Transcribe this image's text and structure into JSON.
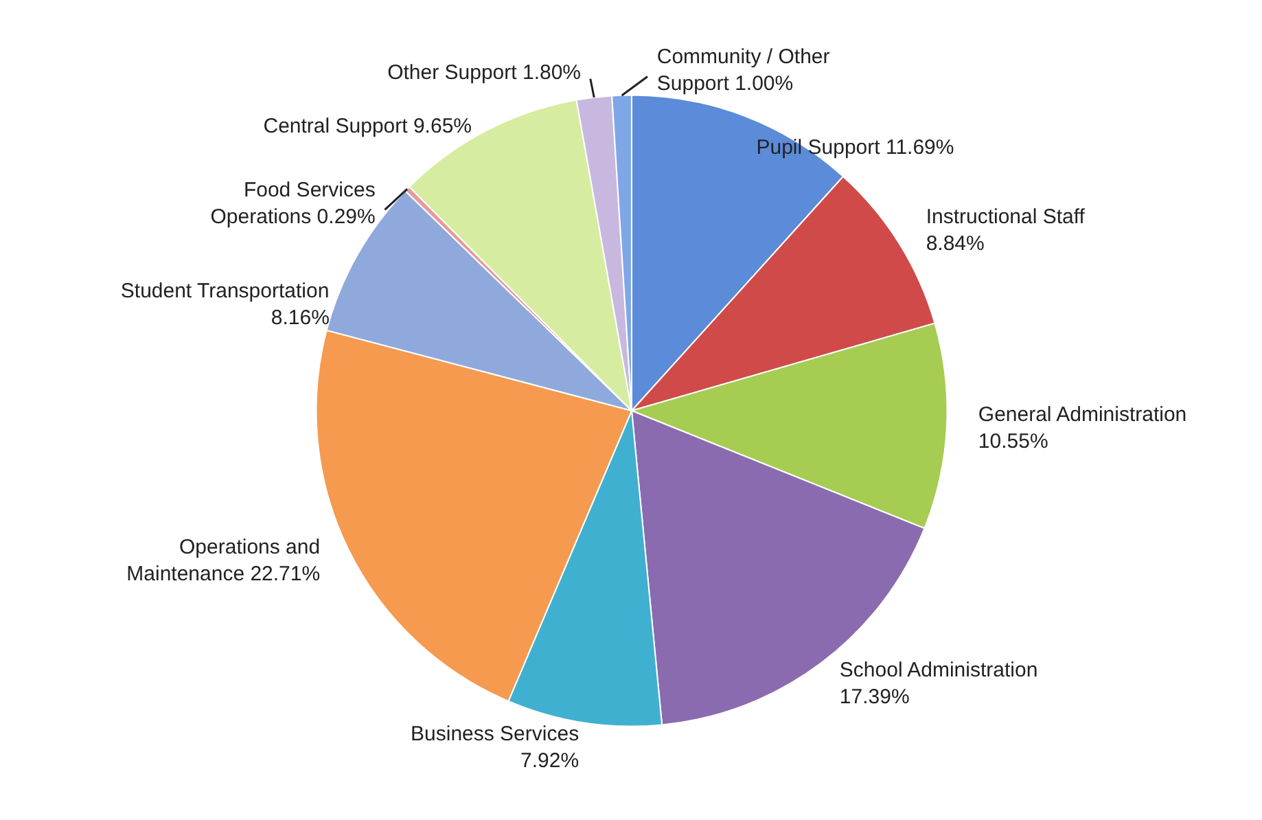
{
  "chart_data": {
    "type": "pie",
    "categories": [
      "Pupil Support",
      "Instructional Staff",
      "General Administration",
      "School Administration",
      "Business Services",
      "Operations and Maintenance",
      "Student Transportation",
      "Food Services Operations",
      "Central Support",
      "Other Support",
      "Community / Other Support"
    ],
    "values": [
      11.69,
      8.84,
      10.55,
      17.39,
      7.92,
      22.71,
      8.16,
      0.29,
      9.65,
      1.8,
      1.0
    ],
    "value_labels": [
      "11.69%",
      "8.84%",
      "10.55%",
      "17.39%",
      "7.92%",
      "22.71%",
      "8.16%",
      "0.29%",
      "9.65%",
      "1.80%",
      "1.00%"
    ],
    "colors": [
      "#5b8bd9",
      "#d04a4a",
      "#a6cc52",
      "#8a6bb0",
      "#3fb0d0",
      "#f59a4f",
      "#8fa9dc",
      "#e89a9a",
      "#d6eca0",
      "#c8b8e0",
      "#7fa7e8"
    ]
  }
}
